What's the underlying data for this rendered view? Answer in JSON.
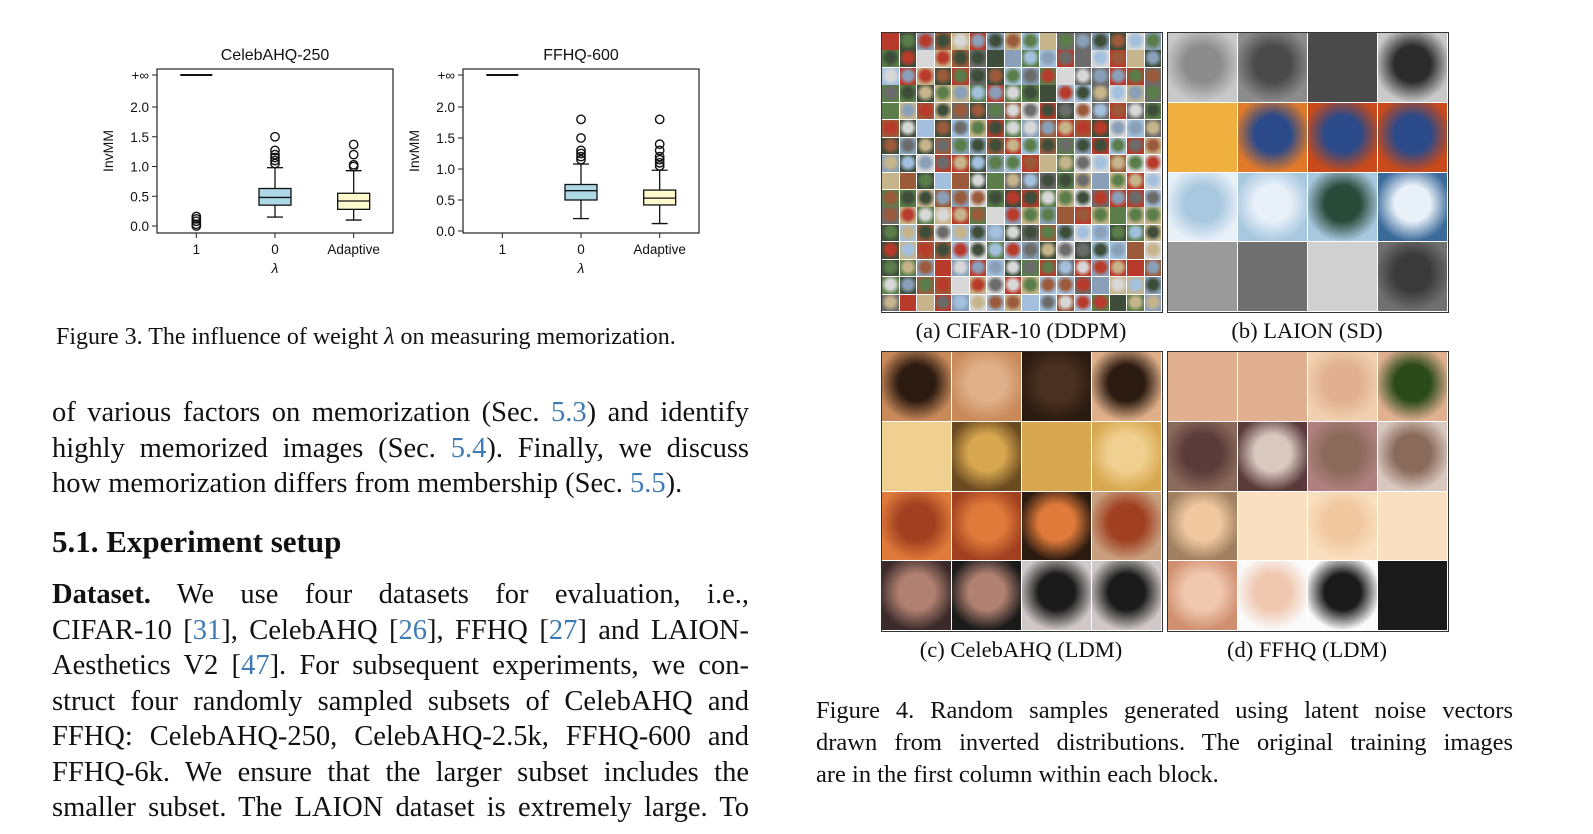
{
  "figure3": {
    "caption_prefix": "Figure 3. The influence of weight ",
    "caption_lambda": "λ",
    "caption_suffix": " on measuring memorization."
  },
  "chart_data": [
    {
      "type": "box",
      "title": "CelebAHQ-250",
      "ylabel": "InvMM",
      "xlabel": "λ",
      "categories": [
        "1",
        "0",
        "Adaptive"
      ],
      "y_ticks": [
        "0.0",
        "0.5",
        "1.0",
        "1.5",
        "2.0",
        "+∞"
      ],
      "boxes": [
        {
          "category": "1",
          "infinite_median": true,
          "outliers": [
            0.0,
            0.03,
            0.08,
            0.12,
            0.16
          ]
        },
        {
          "category": "0",
          "whisker_low": 0.15,
          "q1": 0.35,
          "median": 0.48,
          "q3": 0.63,
          "whisker_high": 0.98,
          "outliers": [
            1.05,
            1.1,
            1.15,
            1.2,
            1.27,
            1.5
          ],
          "fill": "#add8e6"
        },
        {
          "category": "Adaptive",
          "whisker_low": 0.1,
          "q1": 0.28,
          "median": 0.42,
          "q3": 0.55,
          "whisker_high": 0.93,
          "outliers": [
            1.0,
            1.03,
            1.2,
            1.37
          ],
          "fill": "#fffacd"
        }
      ]
    },
    {
      "type": "box",
      "title": "FFHQ-600",
      "ylabel": "InvMM",
      "xlabel": "λ",
      "categories": [
        "1",
        "0",
        "Adaptive"
      ],
      "y_ticks": [
        "0.0",
        "0.5",
        "1.0",
        "1.5",
        "2.0",
        "+∞"
      ],
      "boxes": [
        {
          "category": "1",
          "infinite_median": true,
          "outliers": []
        },
        {
          "category": "0",
          "whisker_low": 0.2,
          "q1": 0.5,
          "median": 0.65,
          "q3": 0.75,
          "whisker_high": 1.08,
          "outliers": [
            1.15,
            1.2,
            1.25,
            1.3,
            1.5,
            1.8
          ],
          "fill": "#add8e6"
        },
        {
          "category": "Adaptive",
          "whisker_low": 0.12,
          "q1": 0.42,
          "median": 0.53,
          "q3": 0.66,
          "whisker_high": 0.98,
          "outliers": [
            1.05,
            1.1,
            1.15,
            1.2,
            1.3,
            1.4,
            1.8
          ],
          "fill": "#fffacd"
        }
      ]
    }
  ],
  "body": {
    "para1": [
      [
        {
          "t": "of various factors on memorization (Sec. "
        },
        {
          "t": "5.3",
          "link": true
        },
        {
          "t": ") and identify"
        }
      ],
      [
        {
          "t": "highly memorized images (Sec. "
        },
        {
          "t": "5.4",
          "link": true
        },
        {
          "t": ").  Finally, we discuss"
        }
      ],
      [
        {
          "t": "how memorization differs from membership (Sec. "
        },
        {
          "t": "5.5",
          "link": true
        },
        {
          "t": ")."
        }
      ]
    ],
    "heading": "5.1. Experiment setup",
    "para2": [
      [
        {
          "t": "Dataset.",
          "bold": true
        },
        {
          "t": "   We use four datasets for evaluation, i.e.,"
        }
      ],
      [
        {
          "t": "CIFAR-10 ["
        },
        {
          "t": "31",
          "link": true
        },
        {
          "t": "], CelebAHQ ["
        },
        {
          "t": "26",
          "link": true
        },
        {
          "t": "], FFHQ ["
        },
        {
          "t": "27",
          "link": true
        },
        {
          "t": "] and LAION-"
        }
      ],
      [
        {
          "t": "Aesthetics V2 ["
        },
        {
          "t": "47",
          "link": true
        },
        {
          "t": "].  For subsequent experiments, we con-"
        }
      ],
      [
        {
          "t": "struct four randomly sampled subsets of CelebAHQ and"
        }
      ],
      [
        {
          "t": "FFHQ: CelebAHQ-250, CelebAHQ-2.5k, FFHQ-600 and"
        }
      ],
      [
        {
          "t": "FFHQ-6k.  We ensure that the larger subset includes the"
        }
      ],
      [
        {
          "t": "smaller subset. The LAION dataset is extremely large. To"
        }
      ]
    ]
  },
  "figure4": {
    "subcaptions": [
      "(a) CIFAR-10 (DDPM)",
      "(b) LAION (SD)",
      "(c) CelebAHQ (LDM)",
      "(d) FFHQ (LDM)"
    ],
    "caption_lines": [
      "Figure 4.  Random samples generated using latent noise vectors",
      "drawn from inverted distributions.  The original training images",
      "are in the first column within each block."
    ]
  }
}
